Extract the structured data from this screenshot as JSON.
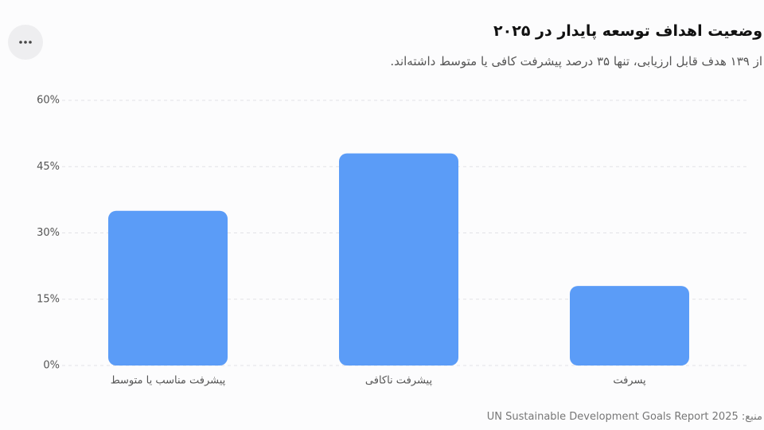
{
  "chart_data": {
    "type": "bar",
    "title": "وضعیت اهداف توسعه پایدار در ۲۰۲۵",
    "subtitle": "از ۱۳۹ هدف قابل ارزیابی، تنها ۳۵ درصد پیشرفت کافی یا متوسط داشته‌اند.",
    "source": "منبع: UN Sustainable Development Goals Report 2025",
    "categories": [
      "پیشرفت مناسب یا متوسط",
      "پیشرفت ناکافی",
      "پسرفت"
    ],
    "values": [
      35,
      48,
      18
    ],
    "color": "#5b9cf7",
    "ylim": [
      0,
      60
    ],
    "yticks": [
      {
        "value": 0,
        "label": "0%"
      },
      {
        "value": 15,
        "label": "15%"
      },
      {
        "value": 30,
        "label": "30%"
      },
      {
        "value": 45,
        "label": "45%"
      },
      {
        "value": 60,
        "label": "60%"
      }
    ],
    "grid": true
  }
}
